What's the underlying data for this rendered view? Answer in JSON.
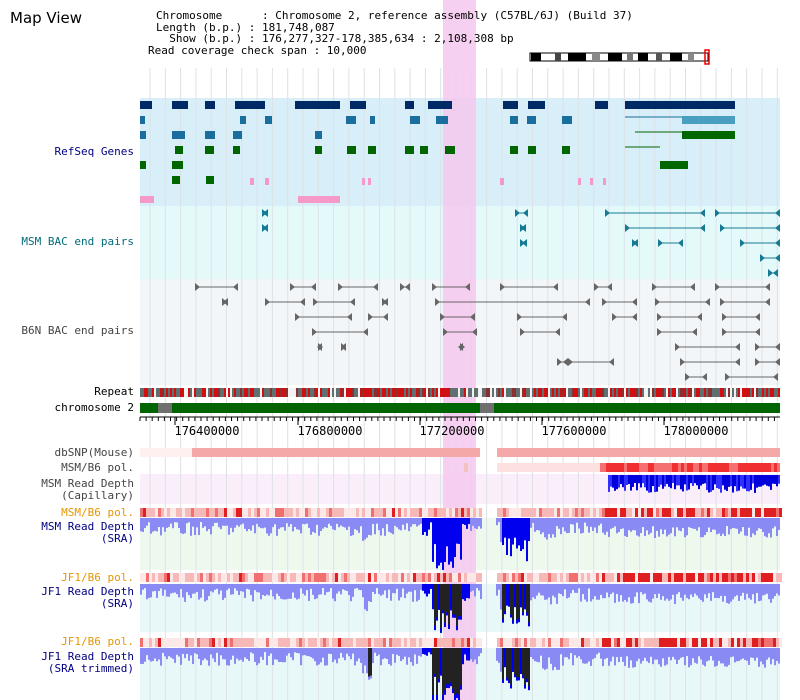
{
  "title": "Map View",
  "info": {
    "chromosome": "Chromosome      : Chromosome 2, reference assembly (C57BL/6J) (Build 37)",
    "length": "Length (b.p.) : 181,748,087",
    "show": "  Show (b.p.) : 176,277,327-178,385,634 : 2,108,308 bp",
    "coverage": "Read coverage check span : 10,000"
  },
  "tracks": {
    "refseq": "RefSeq Genes",
    "msm_bac": "MSM BAC end pairs",
    "b6n_bac": "B6N BAC end pairs",
    "repeat": "Repeat",
    "chromosome": "chromosome 2",
    "dbsnp": "dbSNP(Mouse)",
    "msm_b6_pol_1": "MSM/B6 pol.",
    "msm_depth_cap": "MSM Read Depth\n(Capillary)",
    "msm_b6_pol_2": "MSM/B6 pol.",
    "msm_depth_sra": "MSM Read Depth\n(SRA)",
    "jf1_b6_pol_1": "JF1/B6 pol.",
    "jf1_depth_sra": "JF1 Read Depth\n(SRA)",
    "jf1_b6_pol_2": "JF1/B6 pol.",
    "jf1_depth_trim": "JF1 Read Depth\n(SRA trimmed)"
  },
  "axis": {
    "ticks": [
      "176400000",
      "176800000",
      "177200000",
      "177600000",
      "178000000"
    ]
  },
  "colors": {
    "refseq_bg": "#d8eef8",
    "msm_bg": "#e4fafa",
    "b6n_bg": "#f3f6f8",
    "highlight": "#f5c8ee",
    "chrom_green": "#006400",
    "depth_blue": "#0000ee",
    "depth_light": "#8a8af5",
    "label_navy": "#000080",
    "label_orange": "#e69600",
    "label_teal": "#006b7a",
    "label_gray": "#444444"
  }
}
